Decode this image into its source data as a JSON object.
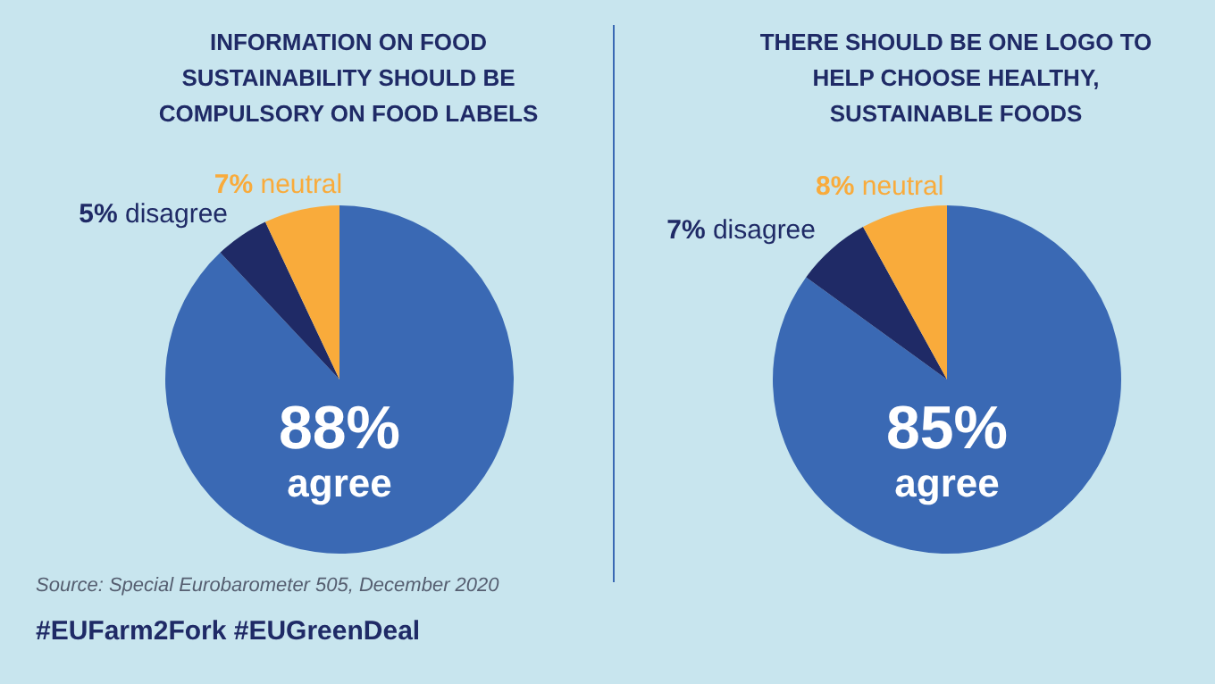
{
  "chart_data": [
    {
      "type": "pie",
      "title": "INFORMATION ON FOOD SUSTAINABILITY SHOULD BE COMPULSORY ON FOOD LABELS",
      "categories": [
        "agree",
        "disagree",
        "neutral"
      ],
      "values": [
        88,
        5,
        7
      ],
      "colors": [
        "#3a69b4",
        "#1f2a66",
        "#f9ab3b"
      ],
      "value_labels": [
        "88%",
        "5%",
        "7%"
      ],
      "annotations": [
        "Source: Special Eurobarometer 505, December 2020",
        "#EUFarm2Fork   #EUGreenDeal"
      ]
    },
    {
      "type": "pie",
      "title": "THERE SHOULD BE ONE LOGO TO HELP CHOOSE HEALTHY, SUSTAINABLE FOODS",
      "categories": [
        "agree",
        "disagree",
        "neutral"
      ],
      "values": [
        85,
        7,
        8
      ],
      "colors": [
        "#3a69b4",
        "#1f2a66",
        "#f9ab3b"
      ],
      "value_labels": [
        "85%",
        "7%",
        "8%"
      ]
    }
  ]
}
